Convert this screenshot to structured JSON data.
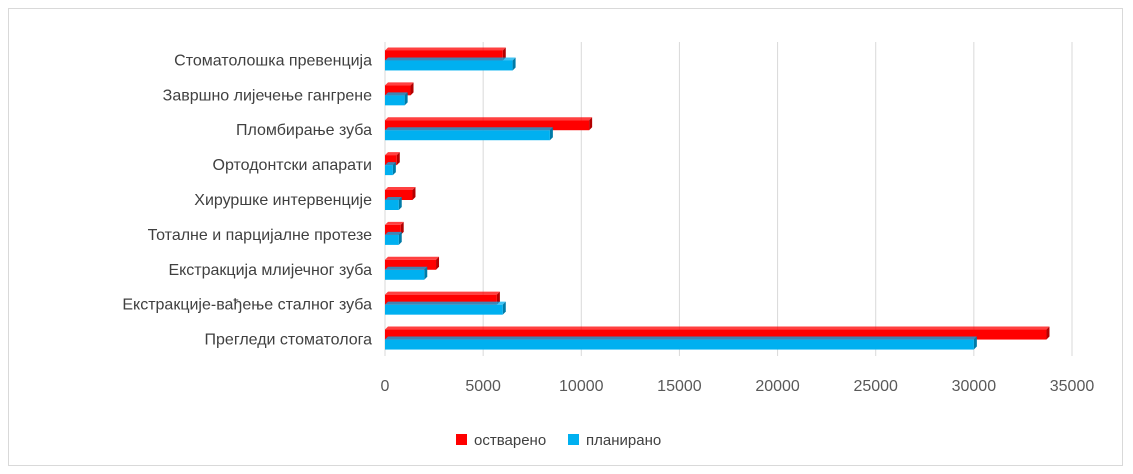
{
  "chart_data": {
    "type": "bar",
    "orientation": "horizontal",
    "categories": [
      "Стоматолошка превенција",
      "Завршно лијечење гангрене",
      "Пломбирање зуба",
      "Ортодонтски апарати",
      "Хируршке интервенције",
      "Тоталне и парцијалне протезе",
      "Екстракција млијечног зуба",
      "Екстракције-вађење сталног зуба",
      "Прегледи стоматолога"
    ],
    "series": [
      {
        "name": "остварено",
        "color": "#ff0000",
        "values": [
          6000,
          1300,
          10400,
          600,
          1400,
          800,
          2600,
          5700,
          33700
        ]
      },
      {
        "name": "планирано",
        "color": "#00b0f0",
        "values": [
          6500,
          1000,
          8400,
          400,
          700,
          700,
          2000,
          6000,
          30000
        ]
      }
    ],
    "x_ticks": [
      "0",
      "5000",
      "10000",
      "15000",
      "20000",
      "25000",
      "30000",
      "35000"
    ],
    "xlim": [
      0,
      35000
    ],
    "grid": true,
    "legend_position": "bottom"
  }
}
